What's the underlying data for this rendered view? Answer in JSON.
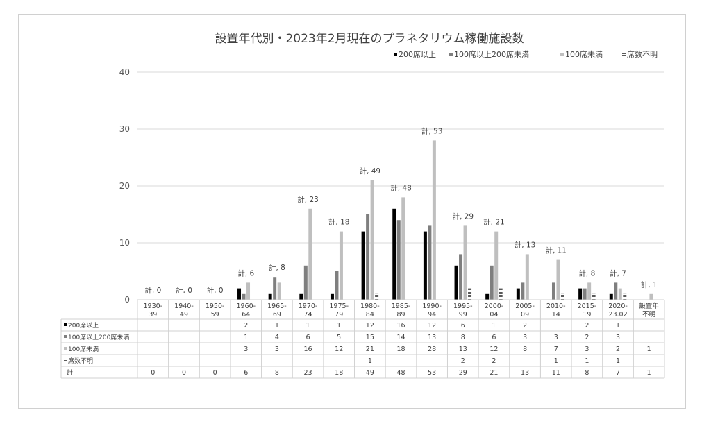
{
  "chart_data": {
    "type": "bar",
    "title": "設置年代別・2023年2月現在のプラネタリウム稼働施設数",
    "ylim": [
      0,
      40
    ],
    "yticks": [
      0,
      10,
      20,
      30,
      40
    ],
    "grid": true,
    "legend_position": "top-right",
    "categories": [
      [
        "1930-",
        "39"
      ],
      [
        "1940-",
        "49"
      ],
      [
        "1950-",
        "59"
      ],
      [
        "1960-",
        "64"
      ],
      [
        "1965-",
        "69"
      ],
      [
        "1970-",
        "74"
      ],
      [
        "1975-",
        "79"
      ],
      [
        "1980-",
        "84"
      ],
      [
        "1985-",
        "89"
      ],
      [
        "1990-",
        "94"
      ],
      [
        "1995-",
        "99"
      ],
      [
        "2000-",
        "04"
      ],
      [
        "2005-",
        "09"
      ],
      [
        "2010-",
        "14"
      ],
      [
        "2015-",
        "19"
      ],
      [
        "2020-",
        "23.02"
      ],
      [
        "設置年",
        "不明"
      ]
    ],
    "series": [
      {
        "name": "200席以上",
        "color": "#000000",
        "pattern": "solid",
        "values": [
          null,
          null,
          null,
          2,
          1,
          1,
          1,
          12,
          16,
          12,
          6,
          1,
          2,
          null,
          2,
          1,
          null
        ]
      },
      {
        "name": "100席以上200席未満",
        "color": "#7f7f7f",
        "pattern": "solid",
        "values": [
          null,
          null,
          null,
          1,
          4,
          6,
          5,
          15,
          14,
          13,
          8,
          6,
          3,
          3,
          2,
          3,
          null
        ]
      },
      {
        "name": "100席未満",
        "color": "#bfbfbf",
        "pattern": "solid",
        "values": [
          null,
          null,
          null,
          3,
          3,
          16,
          12,
          21,
          18,
          28,
          13,
          12,
          8,
          7,
          3,
          2,
          1
        ]
      },
      {
        "name": "席数不明",
        "color": "#595959",
        "pattern": "horizontal-lines",
        "values": [
          null,
          null,
          null,
          null,
          null,
          null,
          null,
          1,
          null,
          null,
          2,
          2,
          null,
          1,
          1,
          1,
          null
        ]
      }
    ],
    "total_row_label": "計",
    "totals": [
      0,
      0,
      0,
      6,
      8,
      23,
      18,
      49,
      48,
      53,
      29,
      21,
      13,
      11,
      8,
      7,
      1
    ],
    "total_prefix": "計, "
  }
}
